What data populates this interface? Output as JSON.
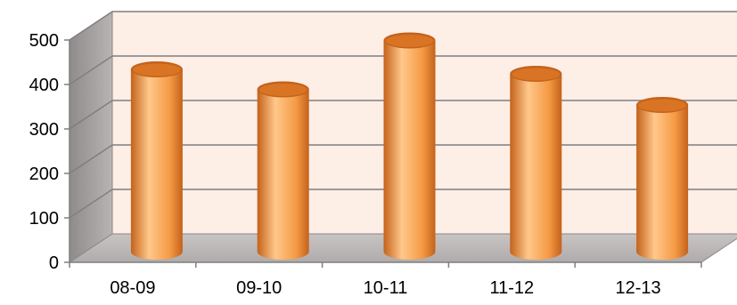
{
  "chart_data": {
    "type": "bar",
    "style": "3d-cylinder",
    "categories": [
      "08-09",
      "09-10",
      "10-11",
      "11-12",
      "12-13"
    ],
    "values": [
      410,
      365,
      475,
      400,
      330
    ],
    "ylim": [
      0,
      500
    ],
    "yticks": [
      "0",
      "100",
      "200",
      "300",
      "400",
      "500"
    ],
    "title": "",
    "xlabel": "",
    "ylabel": "",
    "grid": true,
    "legend": "none",
    "colors": {
      "bar": "#f59a45",
      "bar_dark": "#c4621a",
      "bar_light": "#ffc88a",
      "back_wall": "#fdeee6",
      "side_wall": "#a7a3a3",
      "floor": "#bdb8b8",
      "gridline": "#7f7f7f"
    }
  }
}
